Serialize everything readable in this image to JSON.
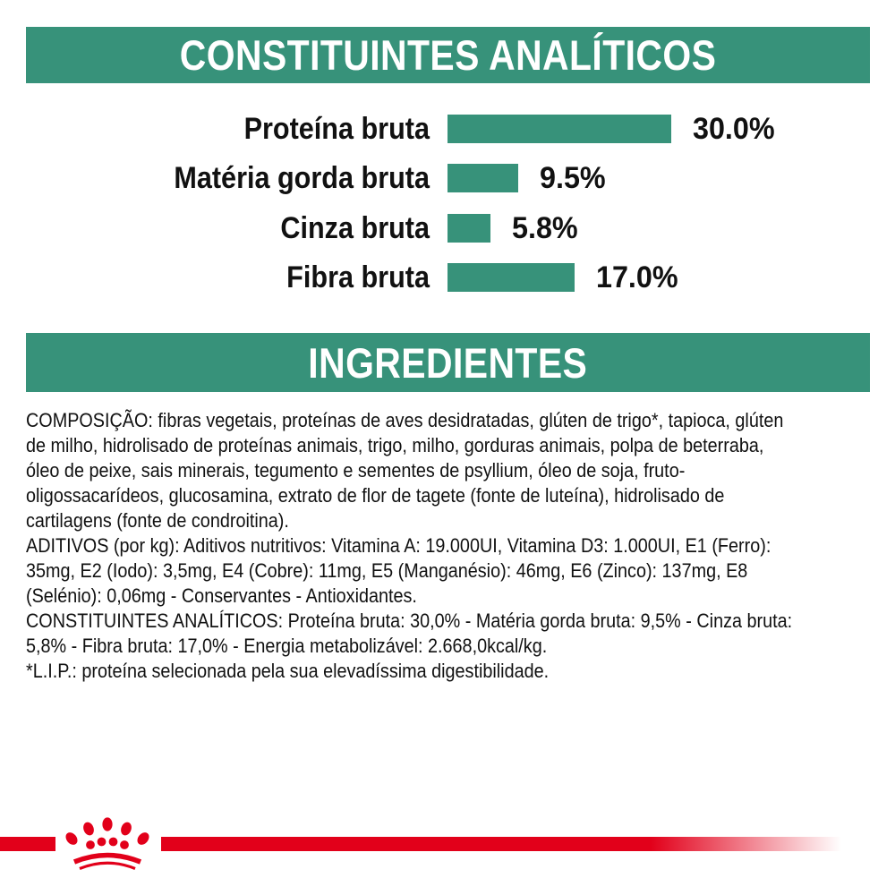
{
  "colors": {
    "green": "#37927a",
    "red": "#e2001a",
    "text": "#111111",
    "header_text": "#ffffff"
  },
  "sections": {
    "analytical_title": "CONSTITUINTES ANALÍTICOS",
    "ingredients_title": "INGREDIENTES"
  },
  "chart_data": {
    "type": "bar",
    "orientation": "horizontal",
    "title": "CONSTITUINTES ANALÍTICOS",
    "categories": [
      "Proteína bruta",
      "Matéria gorda bruta",
      "Cinza bruta",
      "Fibra bruta"
    ],
    "values": [
      30.0,
      9.5,
      5.8,
      17.0
    ],
    "value_labels": [
      "30.0%",
      "9.5%",
      "5.8%",
      "17.0%"
    ],
    "unit": "%",
    "xlim": [
      0,
      30
    ],
    "bar_color": "#37927a",
    "grid": false,
    "legend": false
  },
  "ingredients_text": {
    "lines": [
      "COMPOSIÇÃO: fibras vegetais, proteínas de aves desidratadas, glúten de trigo*, tapioca, glúten",
      "de milho, hidrolisado de proteínas animais, trigo, milho, gorduras animais, polpa de beterraba,",
      "óleo de peixe, sais minerais, tegumento e sementes de psyllium, óleo de soja, fruto-",
      "oligossacarídeos, glucosamina, extrato de flor de tagete (fonte de luteína), hidrolisado de",
      "cartilagens (fonte de condroitina).",
      "ADITIVOS (por kg): Aditivos nutritivos: Vitamina A: 19.000UI, Vitamina D3: 1.000UI, E1 (Ferro):",
      "35mg, E2 (Iodo): 3,5mg, E4 (Cobre): 11mg, E5 (Manganésio): 46mg, E6 (Zinco): 137mg, E8",
      "(Selénio): 0,06mg - Conservantes - Antioxidantes.",
      "CONSTITUINTES ANALÍTICOS: Proteína bruta: 30,0% - Matéria gorda bruta: 9,5% - Cinza bruta:",
      "5,8% - Fibra bruta: 17,0% - Energia metabolizável: 2.668,0kcal/kg.",
      "*L.I.P.: proteína selecionada pela sua elevadíssima digestibilidade."
    ]
  },
  "footer": {
    "logo_icon": "royal-canin-crown-icon"
  }
}
